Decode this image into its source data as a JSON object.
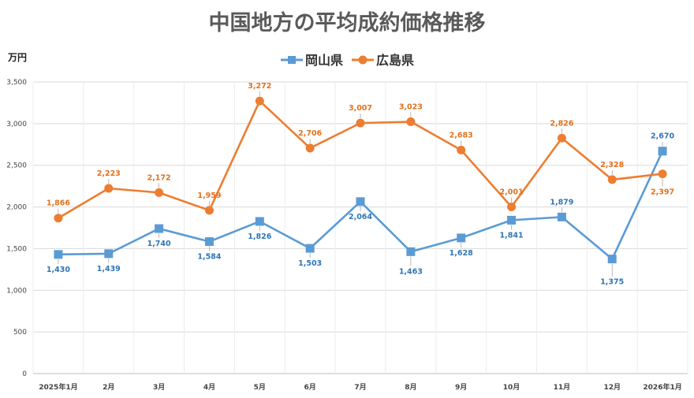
{
  "chart_data": {
    "type": "line",
    "title": "中国地方の平均成約価格推移",
    "ylabel": "万円",
    "ylim": [
      0,
      3500
    ],
    "yticks": [
      "0",
      "500",
      "1,000",
      "1,500",
      "2,000",
      "2,500",
      "3,000",
      "3,500"
    ],
    "grid": true,
    "legend_position": "top",
    "categories": [
      "2025年1月",
      "2月",
      "3月",
      "4月",
      "5月",
      "6月",
      "7月",
      "8月",
      "9月",
      "10月",
      "11月",
      "12月",
      "2026年1月"
    ],
    "series": [
      {
        "name": "岡山県",
        "color": "#5b9bd5",
        "label_color": "#2e75b6",
        "marker": "square",
        "values": [
          1430,
          1439,
          1740,
          1584,
          1826,
          1503,
          2064,
          1463,
          1628,
          1841,
          1879,
          1375,
          2670
        ],
        "labels": [
          "1,430",
          "1,439",
          "1,740",
          "1,584",
          "1,826",
          "1,503",
          "2,064",
          "1,463",
          "1,628",
          "1,841",
          "1,879",
          "1,375",
          "2,670"
        ]
      },
      {
        "name": "広島県",
        "color": "#ed7d31",
        "label_color": "#e2711d",
        "marker": "circle",
        "values": [
          1866,
          2223,
          2172,
          1959,
          3272,
          2706,
          3007,
          3023,
          2683,
          2001,
          2826,
          2328,
          2397
        ],
        "labels": [
          "1,866",
          "2,223",
          "2,172",
          "1,959",
          "3,272",
          "2,706",
          "3,007",
          "3,023",
          "2,683",
          "2,001",
          "2,826",
          "2,328",
          "2,397"
        ]
      }
    ]
  }
}
